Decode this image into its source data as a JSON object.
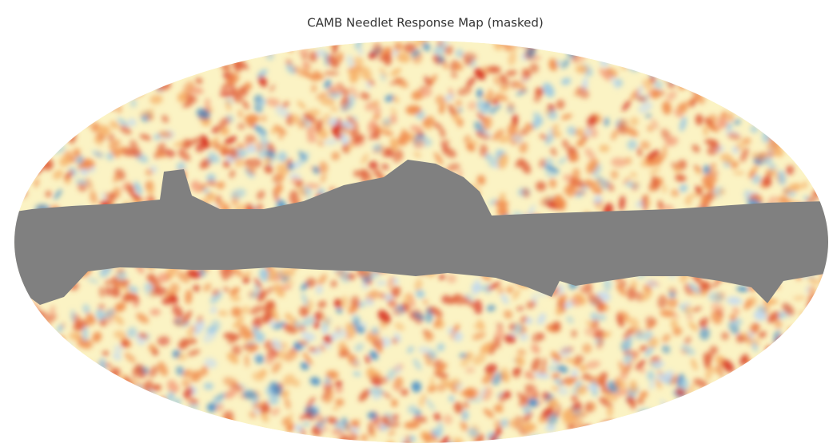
{
  "chart_data": {
    "type": "map",
    "title": "CAMB Needlet Response Map (masked)"
  }
}
